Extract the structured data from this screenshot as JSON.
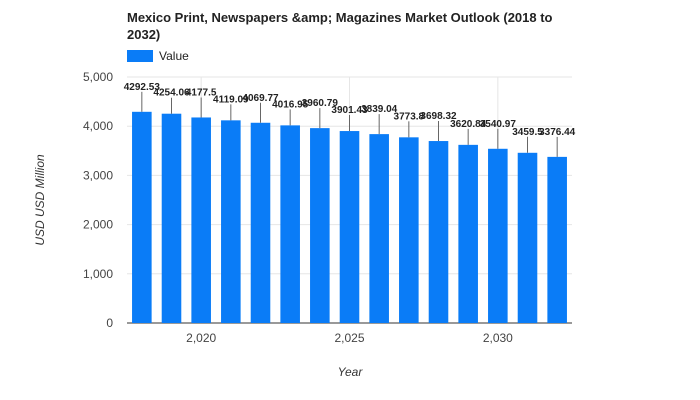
{
  "chart_data": {
    "type": "bar",
    "title_line1": "Mexico Print, Newspapers &amp; Magazines Market Outlook (2018 to",
    "title_line2": "2032)",
    "legend": {
      "label": "Value",
      "placement": "top-left"
    },
    "xlabel": "Year",
    "ylabel": "USD USD Million",
    "ylim": [
      0,
      5000
    ],
    "yticks": [
      {
        "value": 0,
        "label": "0"
      },
      {
        "value": 1000,
        "label": "1,000"
      },
      {
        "value": 2000,
        "label": "2,000"
      },
      {
        "value": 3000,
        "label": "3,000"
      },
      {
        "value": 4000,
        "label": "4,000"
      },
      {
        "value": 5000,
        "label": "5,000"
      }
    ],
    "xticks": [
      {
        "value": 2020,
        "label": "2,020"
      },
      {
        "value": 2025,
        "label": "2,025"
      },
      {
        "value": 2030,
        "label": "2,030"
      }
    ],
    "grid": true,
    "bar_color": "#0a7cf7",
    "series": [
      {
        "name": "Value",
        "x": [
          2018,
          2019,
          2020,
          2021,
          2022,
          2023,
          2024,
          2025,
          2026,
          2027,
          2028,
          2029,
          2030,
          2031,
          2032
        ],
        "values": [
          4292.53,
          4254.06,
          4177.5,
          4119.09,
          4069.77,
          4016.95,
          3960.79,
          3901.43,
          3839.04,
          3773.8,
          3698.32,
          3620.84,
          3540.97,
          3459.5,
          3376.44
        ],
        "labels": [
          "4292.53",
          "4254.06",
          "4177.5",
          "4119.09",
          "4069.77",
          "4016.95",
          "3960.79",
          "3901.43",
          "3839.04",
          "3773.8",
          "3698.32",
          "3620.84",
          "3540.97",
          "3459.5",
          "3376.44"
        ]
      }
    ]
  }
}
